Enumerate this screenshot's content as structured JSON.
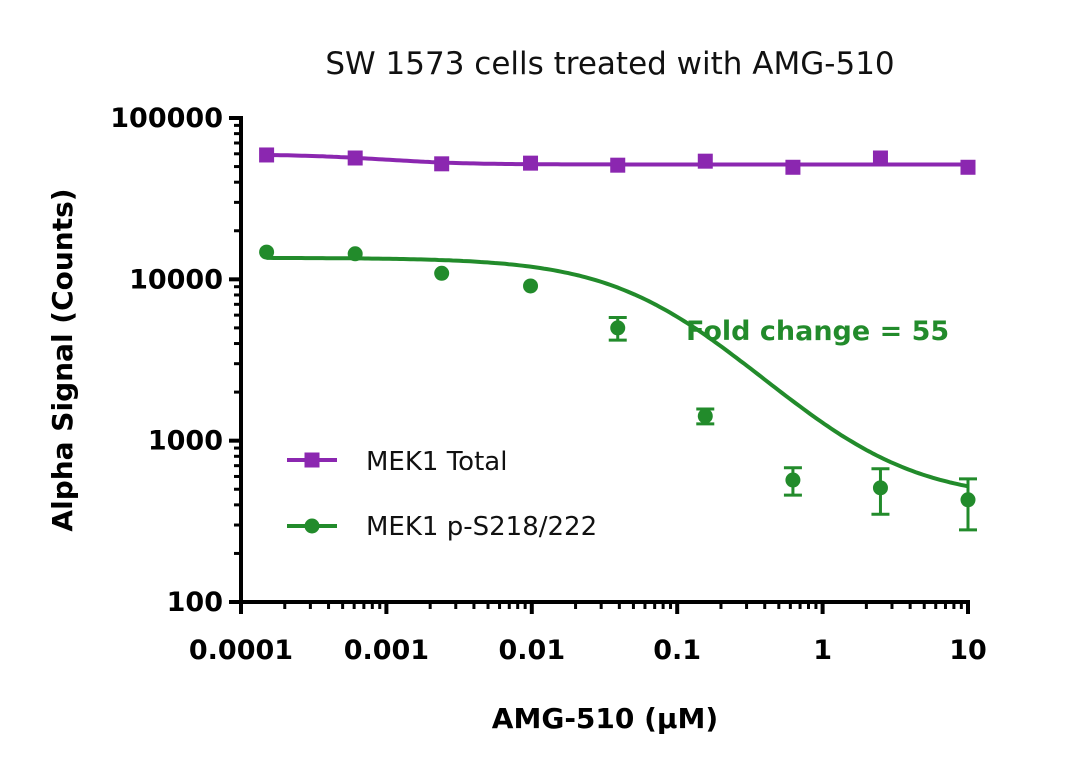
{
  "chart_data": {
    "type": "scatter",
    "title": "SW 1573 cells treated with AMG-510",
    "xlabel": "AMG-510 (µM)",
    "ylabel": "Alpha Signal (Counts)",
    "xscale": "log",
    "yscale": "log",
    "xlim": [
      0.0001,
      10
    ],
    "ylim": [
      100,
      100000
    ],
    "xticks": [
      "0.0001",
      "0.001",
      "0.01",
      "0.1",
      "1",
      "10"
    ],
    "yticks": [
      "100",
      "1000",
      "10000",
      "100000"
    ],
    "grid": false,
    "legend_position": "bottom-left",
    "x": [
      0.00015,
      0.00061,
      0.0024,
      0.0098,
      0.039,
      0.156,
      0.625,
      2.5,
      10
    ],
    "series": [
      {
        "name": "MEK1 Total",
        "color": "#8B27B0",
        "marker": "square",
        "values": [
          59000,
          56500,
          52000,
          52500,
          51000,
          54000,
          49500,
          56500,
          49500
        ],
        "error": [
          0,
          0,
          0,
          0,
          0,
          0,
          0,
          0,
          0
        ],
        "fit": {
          "top": 59500,
          "bottom": 51500,
          "ic50": 0.0009,
          "hill": 1.5
        }
      },
      {
        "name": "MEK1 p-S218/222",
        "color": "#228B2B",
        "marker": "circle",
        "values": [
          14750,
          14400,
          10900,
          9100,
          5000,
          1420,
          570,
          510,
          430
        ],
        "error": [
          0,
          0,
          0,
          0,
          800,
          150,
          110,
          160,
          150
        ],
        "fit": {
          "top": 13600,
          "bottom": 430,
          "ic50": 0.07,
          "hill": 1.0
        }
      }
    ],
    "annotations": [
      {
        "text": "Fold change = 55",
        "color": "#228B2B"
      }
    ]
  }
}
